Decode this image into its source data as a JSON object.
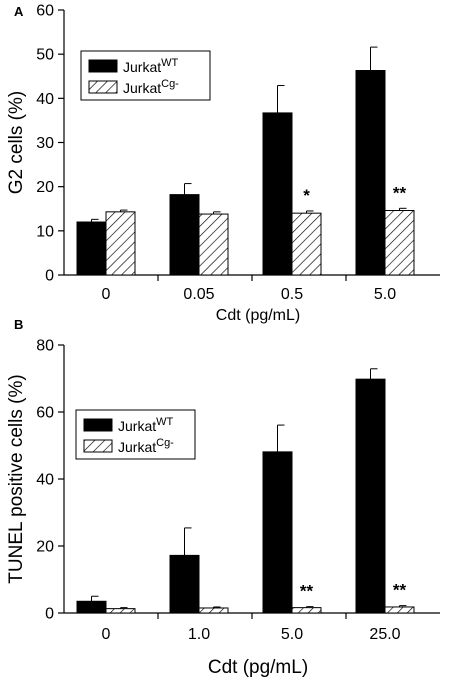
{
  "chart_data": [
    {
      "type": "bar",
      "panel_label": "A",
      "xlabel": "Cdt (pg/mL)",
      "ylabel": "G2 cells (%)",
      "ylim": [
        0,
        60
      ],
      "yticks": [
        "0",
        "10",
        "20",
        "30",
        "40",
        "50",
        "60"
      ],
      "categories": [
        "0",
        "0.05",
        "0.5",
        "5.0"
      ],
      "series": [
        {
          "name": "Jurkat",
          "sup": "WT",
          "fill": "#000000",
          "values": [
            12,
            18.2,
            36.7,
            46.3
          ],
          "errors": [
            0.6,
            2.5,
            6.2,
            5.3
          ]
        },
        {
          "name": "Jurkat",
          "sup": "Cg-",
          "fill": "hatch",
          "values": [
            14.3,
            13.8,
            14.0,
            14.6
          ],
          "errors": [
            0.4,
            0.5,
            0.5,
            0.5
          ]
        }
      ],
      "annotations": [
        "",
        "",
        "*",
        "**"
      ],
      "legend": "top-left",
      "grid": false
    },
    {
      "type": "bar",
      "panel_label": "B",
      "xlabel": "Cdt (pg/mL)",
      "ylabel": "TUNEL positive cells (%)",
      "ylim": [
        0,
        80
      ],
      "yticks": [
        "0",
        "20",
        "40",
        "60",
        "80"
      ],
      "categories": [
        "0",
        "1.0",
        "5.0",
        "25.0"
      ],
      "series": [
        {
          "name": "Jurkat",
          "sup": "WT",
          "fill": "#000000",
          "values": [
            3.5,
            17.2,
            48.1,
            69.8
          ],
          "errors": [
            1.5,
            8.2,
            8.0,
            3.1
          ]
        },
        {
          "name": "Jurkat",
          "sup": "Cg-",
          "fill": "hatch",
          "values": [
            1.3,
            1.5,
            1.6,
            1.8
          ],
          "errors": [
            0.3,
            0.3,
            0.3,
            0.4
          ]
        }
      ],
      "annotations": [
        "",
        "",
        "**",
        "**"
      ],
      "legend": "top-left",
      "grid": false
    }
  ]
}
